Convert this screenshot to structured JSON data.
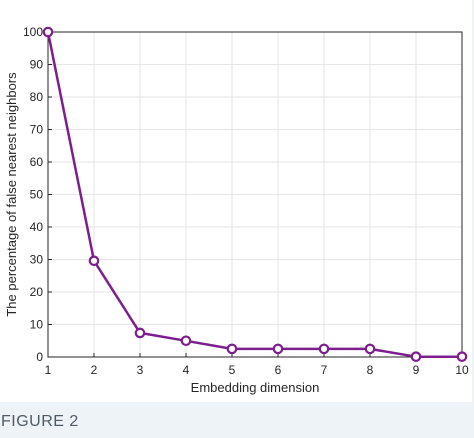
{
  "figure": {
    "caption": "FIGURE 2"
  },
  "chart_data": {
    "type": "line",
    "title": "",
    "xlabel": "Embedding dimension",
    "ylabel": "The percentage of false nearest neighbors",
    "x": [
      1,
      2,
      3,
      4,
      5,
      6,
      7,
      8,
      9,
      10
    ],
    "series": [
      {
        "values": [
          100,
          29.6,
          7.4,
          5.0,
          2.5,
          2.5,
          2.5,
          2.5,
          0.1,
          0.1
        ]
      }
    ],
    "xlim": [
      1,
      10
    ],
    "ylim": [
      0,
      100
    ],
    "xticks": [
      "1",
      "2",
      "3",
      "4",
      "5",
      "6",
      "7",
      "8",
      "9",
      "10"
    ],
    "yticks": [
      "0",
      "10",
      "20",
      "30",
      "40",
      "50",
      "60",
      "70",
      "80",
      "90",
      "100"
    ],
    "grid": true,
    "legend": "none",
    "marker": "open-circle",
    "colors": {
      "series": "#7d1e8e",
      "grid": "#e6e6e6",
      "axis": "#262626"
    }
  }
}
